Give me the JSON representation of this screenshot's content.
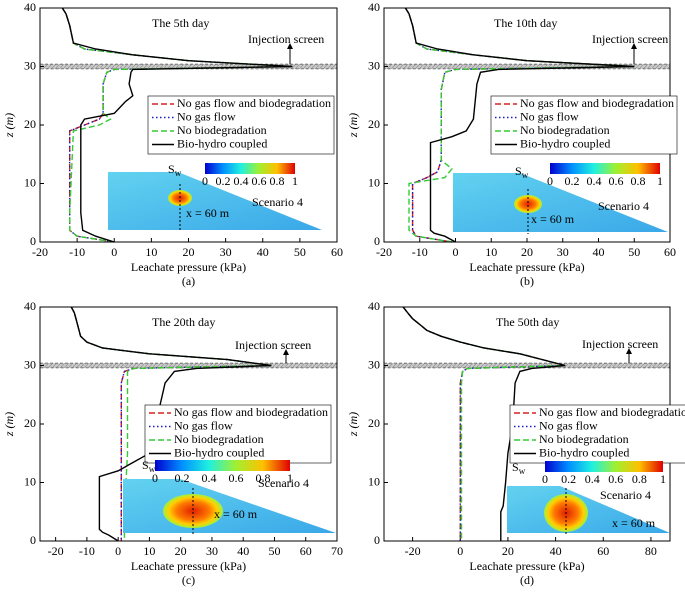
{
  "chart_data": [
    {
      "type": "line",
      "caption": "(a)",
      "title": "The 5th day",
      "annotation": "Injection screen",
      "xlabel": "Leachate pressure (kPa)",
      "ylabel": "z (m)",
      "xlim": [
        -20,
        60
      ],
      "xticks": [
        -20,
        -10,
        0,
        10,
        20,
        30,
        40,
        50,
        60
      ],
      "ylim": [
        0,
        40
      ],
      "yticks": [
        0,
        10,
        20,
        30,
        40
      ],
      "injection_screen_z": [
        29.6,
        30.4
      ],
      "colorbar_label": {
        "symbol": "S",
        "subscript": "w"
      },
      "colorbar_ticks": [
        0,
        0.2,
        0.4,
        0.6,
        0.8,
        1
      ],
      "inset_labels": [
        "Scenario 4",
        "x = 60 m"
      ],
      "series": [
        {
          "name": "No gas flow and biodegradation",
          "color": "#d62020",
          "style": "dashed",
          "x": [
            -14,
            -13,
            -12,
            -11,
            -8,
            5,
            20,
            48,
            0,
            -2,
            -3,
            -3,
            -4,
            -8,
            -12,
            -12,
            -12,
            -10,
            0
          ],
          "y": [
            40,
            39,
            37,
            34,
            33,
            32,
            31,
            30,
            29.5,
            29,
            27,
            22,
            21,
            20,
            19,
            5,
            2,
            1,
            0
          ]
        },
        {
          "name": "No gas flow",
          "color": "#1a1acc",
          "style": "dotted",
          "x": [
            -14,
            -13,
            -12,
            -11,
            -8,
            5,
            20,
            48,
            0,
            -2,
            -3,
            -3,
            -4,
            -8,
            -12,
            -12,
            -12,
            -10,
            0
          ],
          "y": [
            40,
            39,
            37,
            34,
            33,
            32,
            31,
            30,
            29.5,
            29,
            27,
            22,
            21,
            20,
            19,
            5,
            2,
            1,
            0
          ]
        },
        {
          "name": "No biodegradation",
          "color": "#33cc33",
          "style": "dashed",
          "x": [
            -14,
            -13,
            -12,
            -11,
            -8,
            5,
            20,
            48,
            0,
            -2,
            -3,
            -3,
            -1,
            -4,
            -11,
            -12,
            -12,
            -10,
            0
          ],
          "y": [
            40,
            39,
            37,
            34,
            33,
            32,
            31,
            30,
            29.5,
            29,
            27,
            22,
            21,
            20,
            19,
            5,
            2,
            1,
            0
          ]
        },
        {
          "name": "Bio-hydro coupled",
          "color": "#000000",
          "style": "solid",
          "x": [
            -14,
            -13,
            -12,
            -11,
            -5,
            5,
            20,
            48,
            5,
            4.5,
            4,
            5,
            3,
            0,
            -8,
            -9,
            -9,
            -8.5,
            -5,
            0
          ],
          "y": [
            40,
            39,
            37,
            34,
            33,
            32,
            31,
            30,
            29.5,
            29,
            27,
            25,
            24,
            22,
            21,
            20,
            5,
            2,
            1,
            0
          ]
        }
      ]
    },
    {
      "type": "line",
      "caption": "(b)",
      "title": "The 10th day",
      "annotation": "Injection screen",
      "xlabel": "Leachate pressure (kPa)",
      "ylabel": "z (m)",
      "xlim": [
        -20,
        60
      ],
      "xticks": [
        -20,
        -10,
        0,
        10,
        20,
        30,
        40,
        50,
        60
      ],
      "ylim": [
        0,
        40
      ],
      "yticks": [
        0,
        10,
        20,
        30,
        40
      ],
      "injection_screen_z": [
        29.6,
        30.4
      ],
      "colorbar_label": {
        "symbol": "S",
        "subscript": "w"
      },
      "colorbar_ticks": [
        0,
        0.2,
        0.4,
        0.6,
        0.8,
        1
      ],
      "inset_labels": [
        "Scenario 4",
        "x = 60 m"
      ],
      "series": [
        {
          "name": "No gas flow and biodegradation",
          "color": "#d62020",
          "style": "dashed",
          "x": [
            -14,
            -13,
            -12,
            -11,
            -8,
            5,
            20,
            50,
            0,
            -3,
            -4,
            -4,
            -5,
            -8,
            -12,
            -12,
            -11,
            -1
          ],
          "y": [
            40,
            39,
            37,
            34,
            33,
            32,
            31,
            30,
            29.5,
            29,
            26,
            14,
            12,
            11,
            10,
            2,
            1,
            0
          ]
        },
        {
          "name": "No gas flow",
          "color": "#1a1acc",
          "style": "dotted",
          "x": [
            -14,
            -13,
            -12,
            -11,
            -8,
            5,
            20,
            50,
            0,
            -3,
            -4,
            -4,
            -5,
            -8,
            -12,
            -12,
            -11,
            -1
          ],
          "y": [
            40,
            39,
            37,
            34,
            33,
            32,
            31,
            30,
            29.5,
            29,
            26,
            14,
            12,
            11,
            10,
            2,
            1,
            0
          ]
        },
        {
          "name": "No biodegradation",
          "color": "#33cc33",
          "style": "dashed",
          "x": [
            -14,
            -13,
            -12,
            -11,
            -8,
            5,
            20,
            50,
            0,
            -3,
            -4,
            -4,
            -1,
            -3,
            -13,
            -13,
            -11,
            -1
          ],
          "y": [
            40,
            39,
            37,
            34,
            33,
            32,
            31,
            30,
            29.5,
            29,
            26,
            14,
            12.5,
            11,
            10,
            2,
            1,
            0
          ]
        },
        {
          "name": "Bio-hydro coupled",
          "color": "#000000",
          "style": "solid",
          "x": [
            -14,
            -13,
            -12,
            -11,
            -5,
            5,
            20,
            50,
            12,
            7,
            6,
            5,
            3,
            -1,
            -7,
            -7,
            -6,
            -3,
            0
          ],
          "y": [
            40,
            39,
            37,
            34,
            33,
            32,
            31,
            30,
            29.5,
            29,
            27,
            21,
            19,
            18,
            17,
            2,
            1.5,
            1,
            0
          ]
        }
      ]
    },
    {
      "type": "line",
      "caption": "(c)",
      "title": "The 20th day",
      "annotation": "Injection screen",
      "xlabel": "Leachate pressure (kPa)",
      "ylabel": "z (m)",
      "xlim": [
        -25,
        70
      ],
      "xticks": [
        -20,
        -10,
        0,
        10,
        20,
        30,
        40,
        50,
        60,
        70
      ],
      "ylim": [
        0,
        40
      ],
      "yticks": [
        0,
        10,
        20,
        30,
        40
      ],
      "injection_screen_z": [
        29.6,
        30.4
      ],
      "colorbar_label": {
        "symbol": "S",
        "subscript": "w"
      },
      "colorbar_ticks": [
        0,
        0.2,
        0.4,
        0.6,
        0.8,
        1
      ],
      "inset_labels": [
        "Scenario 4",
        "x = 60 m"
      ],
      "series": [
        {
          "name": "No gas flow and biodegradation",
          "color": "#d62020",
          "style": "dashed",
          "x": [
            -15,
            -14,
            -13,
            -12,
            -10,
            -5,
            10,
            35,
            49,
            5,
            2,
            1,
            1,
            1,
            1
          ],
          "y": [
            40,
            39,
            37,
            35,
            34,
            33,
            32,
            31,
            30,
            29.5,
            29,
            27,
            15,
            5,
            0
          ]
        },
        {
          "name": "No gas flow",
          "color": "#1a1acc",
          "style": "dotted",
          "x": [
            -15,
            -14,
            -13,
            -12,
            -10,
            -5,
            10,
            35,
            49,
            5,
            2,
            1,
            1,
            1,
            1
          ],
          "y": [
            40,
            39,
            37,
            35,
            34,
            33,
            32,
            31,
            30,
            29.5,
            29,
            27,
            15,
            5,
            0
          ]
        },
        {
          "name": "No biodegradation",
          "color": "#33cc33",
          "style": "dashed",
          "x": [
            -15,
            -14,
            -13,
            -12,
            -10,
            -5,
            10,
            35,
            49,
            5,
            3,
            3,
            3,
            2,
            2
          ],
          "y": [
            40,
            39,
            37,
            35,
            34,
            33,
            32,
            31,
            30,
            29.5,
            29,
            27,
            15,
            5,
            0
          ]
        },
        {
          "name": "Bio-hydro coupled",
          "color": "#000000",
          "style": "solid",
          "x": [
            -15,
            -14,
            -13,
            -12,
            -10,
            -5,
            10,
            35,
            49,
            25,
            18,
            15,
            12,
            10,
            0,
            -6,
            -6,
            -5,
            -3,
            0
          ],
          "y": [
            40,
            39,
            37,
            35,
            34,
            33,
            32,
            31,
            30,
            29.5,
            29,
            27,
            20,
            15,
            12,
            11,
            2,
            1.5,
            1,
            0
          ]
        }
      ]
    },
    {
      "type": "line",
      "caption": "(d)",
      "title": "The 50th day",
      "annotation": "Injection screen",
      "xlabel": "Leachate pressure (kPa)",
      "ylabel": "z (m)",
      "xlim": [
        -32,
        88
      ],
      "xticks": [
        -20,
        0,
        20,
        40,
        60,
        80
      ],
      "ylim": [
        0,
        40
      ],
      "yticks": [
        0,
        10,
        20,
        30,
        40
      ],
      "injection_screen_z": [
        29.6,
        30.4
      ],
      "colorbar_label": {
        "symbol": "S",
        "subscript": "w"
      },
      "colorbar_ticks": [
        0,
        0.2,
        0.4,
        0.6,
        0.8,
        1
      ],
      "inset_labels": [
        "Scenario 4",
        "x = 60 m"
      ],
      "series": [
        {
          "name": "No gas flow and biodegradation",
          "color": "#d62020",
          "style": "dashed",
          "x": [
            -24,
            -22,
            -20,
            -17,
            -14,
            -8,
            0,
            10,
            25,
            44,
            3,
            1,
            0,
            0,
            0
          ],
          "y": [
            40,
            39,
            38,
            37,
            36,
            35,
            34,
            33,
            32,
            30,
            29.5,
            29,
            27,
            10,
            0
          ]
        },
        {
          "name": "No gas flow",
          "color": "#1a1acc",
          "style": "dotted",
          "x": [
            -24,
            -22,
            -20,
            -17,
            -14,
            -8,
            0,
            10,
            25,
            44,
            3,
            1,
            0,
            0,
            0
          ],
          "y": [
            40,
            39,
            38,
            37,
            36,
            35,
            34,
            33,
            32,
            30,
            29.5,
            29,
            27,
            10,
            0
          ]
        },
        {
          "name": "No biodegradation",
          "color": "#33cc33",
          "style": "dashed",
          "x": [
            -24,
            -22,
            -20,
            -17,
            -14,
            -8,
            0,
            10,
            25,
            44,
            3,
            1,
            0.5,
            0.5,
            0.5
          ],
          "y": [
            40,
            39,
            38,
            37,
            36,
            35,
            34,
            33,
            32,
            30,
            29.5,
            29,
            27,
            10,
            0
          ]
        },
        {
          "name": "Bio-hydro coupled",
          "color": "#000000",
          "style": "solid",
          "x": [
            -24,
            -22,
            -20,
            -17,
            -14,
            -8,
            0,
            10,
            25,
            44,
            30,
            25,
            23,
            22,
            20,
            19,
            18,
            17,
            17
          ],
          "y": [
            40,
            39,
            38,
            37,
            36,
            35,
            34,
            33,
            32,
            30,
            29.5,
            29,
            27,
            20,
            15,
            10,
            6,
            5,
            0
          ]
        }
      ]
    }
  ]
}
